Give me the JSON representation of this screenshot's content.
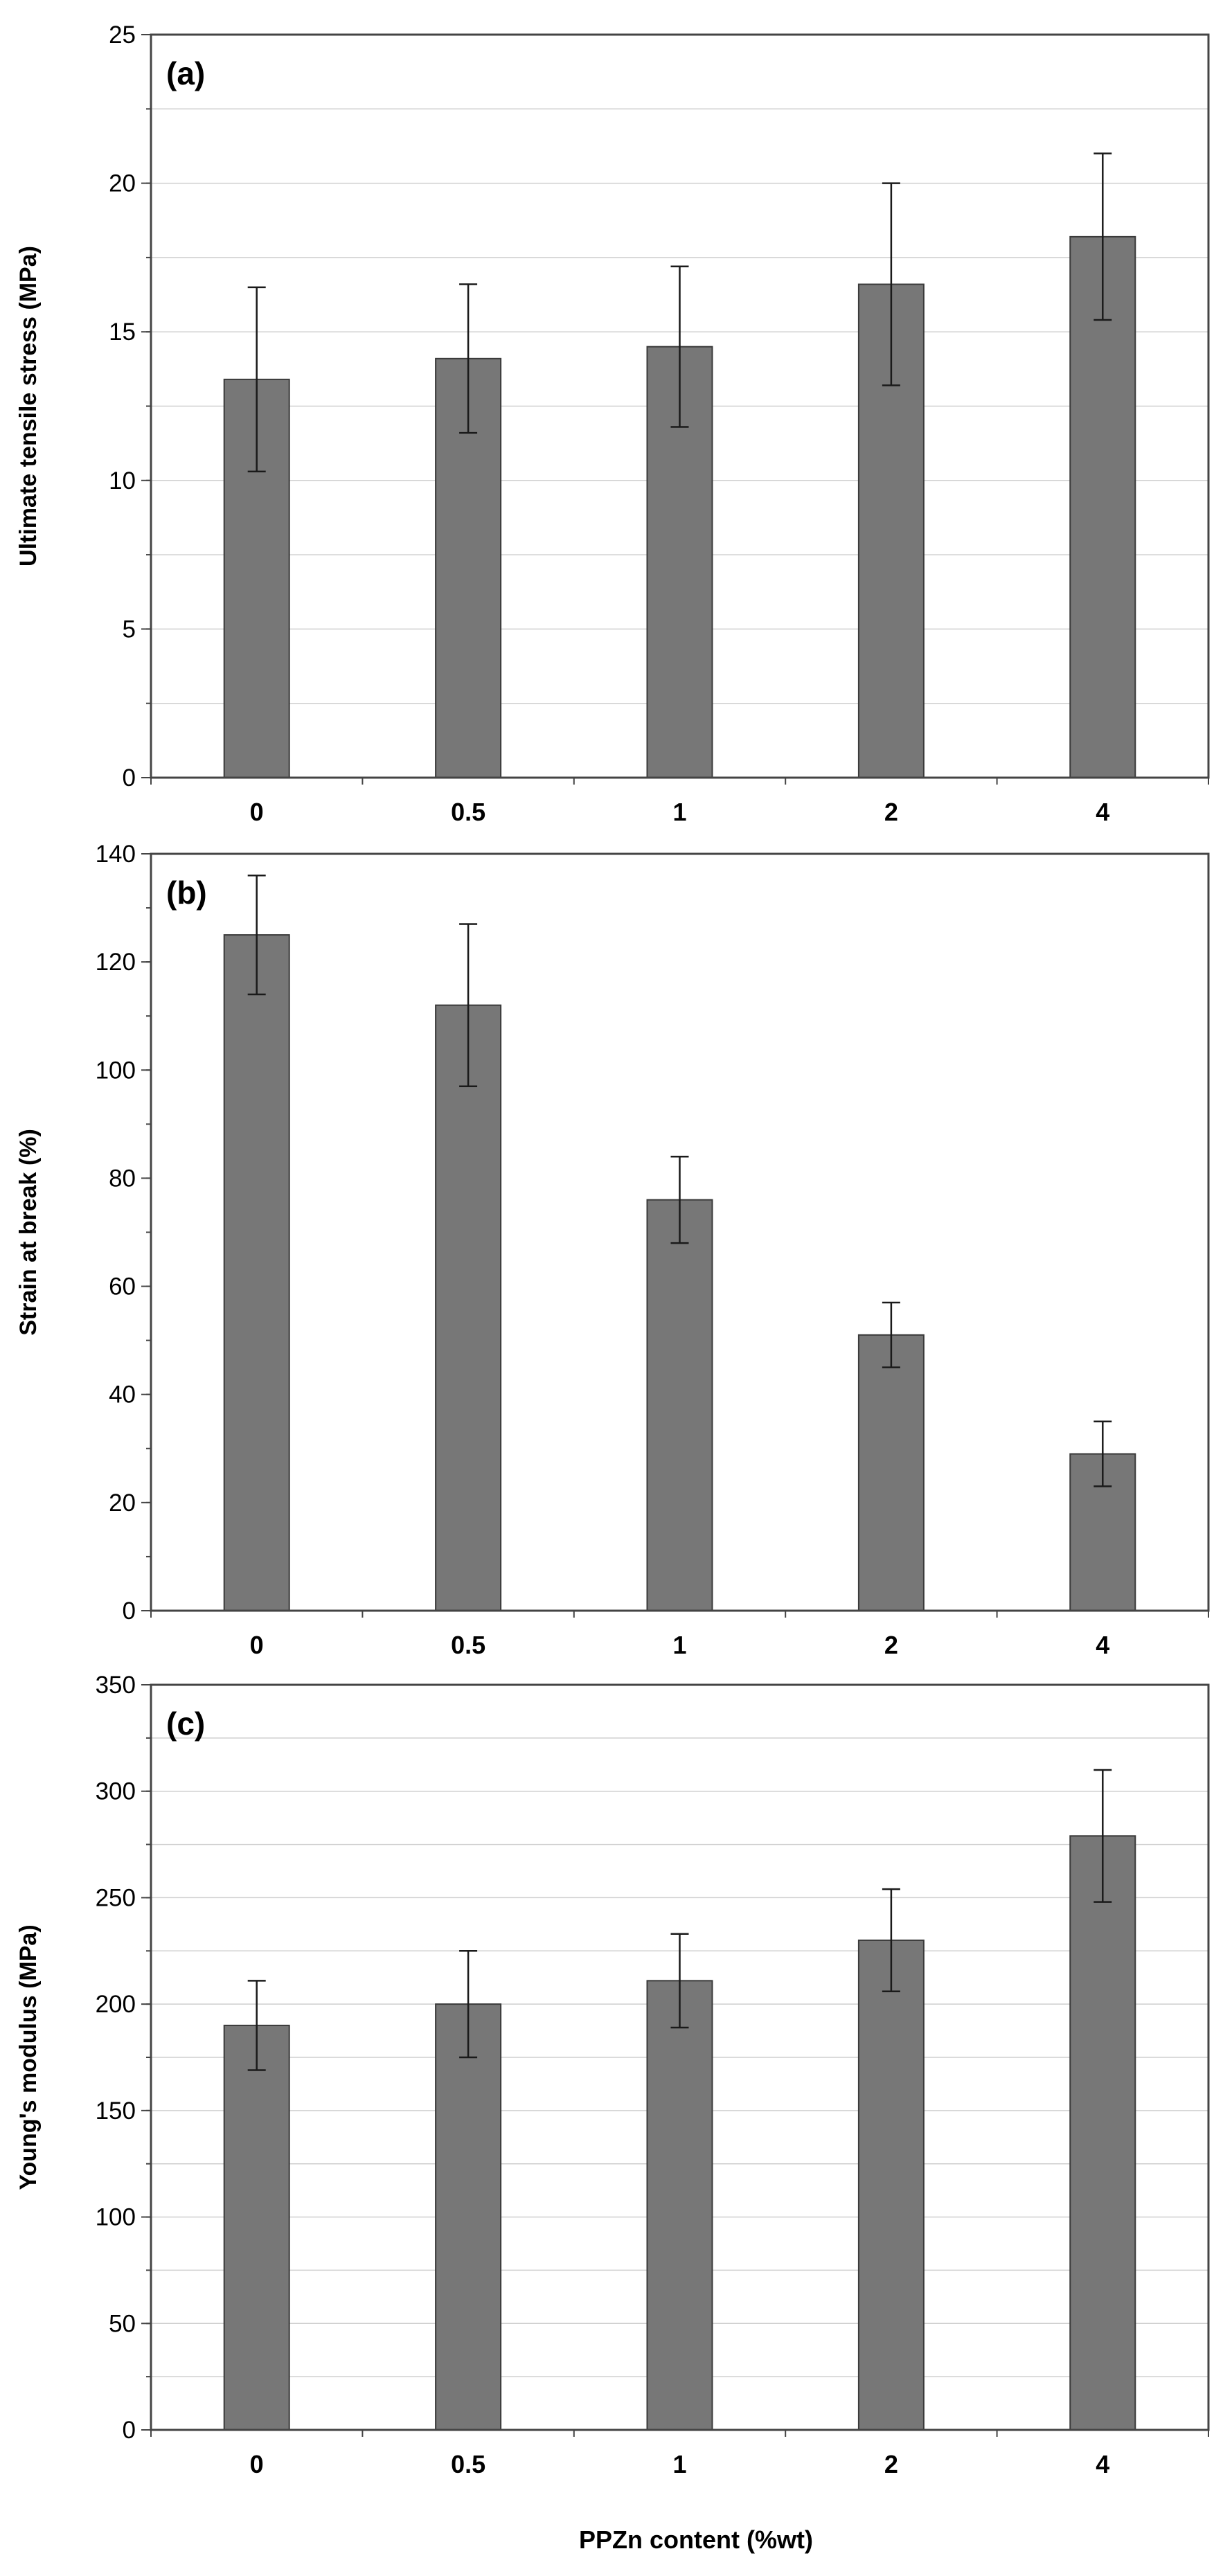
{
  "colors": {
    "bar": "#777777",
    "bar_edge": "#3a3a3a",
    "grid": "#cfcfcf",
    "axis": "#444444"
  },
  "xlabel": "PPZn content (%wt)",
  "chart_data": [
    {
      "type": "bar",
      "panel_label": "(a)",
      "categories": [
        "0",
        "0.5",
        "1",
        "2",
        "4"
      ],
      "values": [
        13.4,
        14.1,
        14.5,
        16.6,
        18.2
      ],
      "errors": [
        3.1,
        2.5,
        2.7,
        3.4,
        2.8
      ],
      "title": "",
      "xlabel": "",
      "ylabel": "Ultimate tensile stress (MPa)",
      "ylim": [
        0,
        25
      ],
      "yticks": [
        0,
        5,
        10,
        15,
        20,
        25
      ],
      "minor_step": 2.5,
      "grid": true
    },
    {
      "type": "bar",
      "panel_label": "(b)",
      "categories": [
        "0",
        "0.5",
        "1",
        "2",
        "4"
      ],
      "values": [
        125,
        112,
        76,
        51,
        29
      ],
      "errors": [
        11,
        15,
        8,
        6,
        6
      ],
      "title": "",
      "xlabel": "",
      "ylabel": "Strain at break (%)",
      "ylim": [
        0,
        140
      ],
      "yticks": [
        0,
        20,
        40,
        60,
        80,
        100,
        120,
        140
      ],
      "minor_step": 10,
      "grid": false
    },
    {
      "type": "bar",
      "panel_label": "(c)",
      "categories": [
        "0",
        "0.5",
        "1",
        "2",
        "4"
      ],
      "values": [
        190,
        200,
        211,
        230,
        279
      ],
      "errors": [
        21,
        25,
        22,
        24,
        31
      ],
      "title": "",
      "xlabel": "PPZn content (%wt)",
      "ylabel": "Young's modulus (MPa)",
      "ylim": [
        0,
        350
      ],
      "yticks": [
        0,
        50,
        100,
        150,
        200,
        250,
        300,
        350
      ],
      "minor_step": 25,
      "grid": true
    }
  ]
}
